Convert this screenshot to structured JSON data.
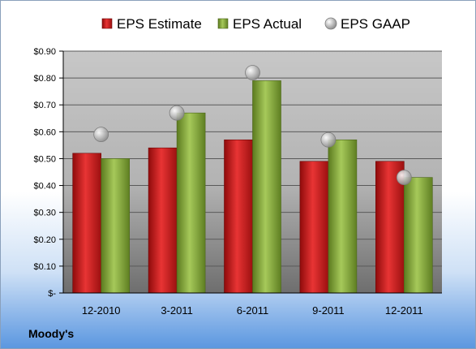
{
  "chart_data": {
    "type": "bar",
    "categories": [
      "12-2010",
      "3-2011",
      "6-2011",
      "9-2011",
      "12-2011"
    ],
    "series": [
      {
        "name": "EPS Estimate",
        "kind": "bar",
        "color": "#cc1f1f",
        "values": [
          0.52,
          0.54,
          0.57,
          0.49,
          0.49
        ]
      },
      {
        "name": "EPS Actual",
        "kind": "bar",
        "color": "#86a83a",
        "values": [
          0.5,
          0.67,
          0.79,
          0.57,
          0.43
        ]
      },
      {
        "name": "EPS GAAP",
        "kind": "marker",
        "color": "#b9b9b9",
        "values": [
          0.59,
          0.67,
          0.82,
          0.57,
          0.43
        ]
      }
    ],
    "ylim": [
      0,
      0.9
    ],
    "yticks": [
      0,
      0.1,
      0.2,
      0.3,
      0.4,
      0.5,
      0.6,
      0.7,
      0.8,
      0.9
    ],
    "ytick_labels": [
      "$-",
      "$0.10",
      "$0.20",
      "$0.30",
      "$0.40",
      "$0.50",
      "$0.60",
      "$0.70",
      "$0.80",
      "$0.90"
    ],
    "grid": true,
    "legend_position": "top"
  },
  "footer": {
    "company": "Moody's"
  }
}
